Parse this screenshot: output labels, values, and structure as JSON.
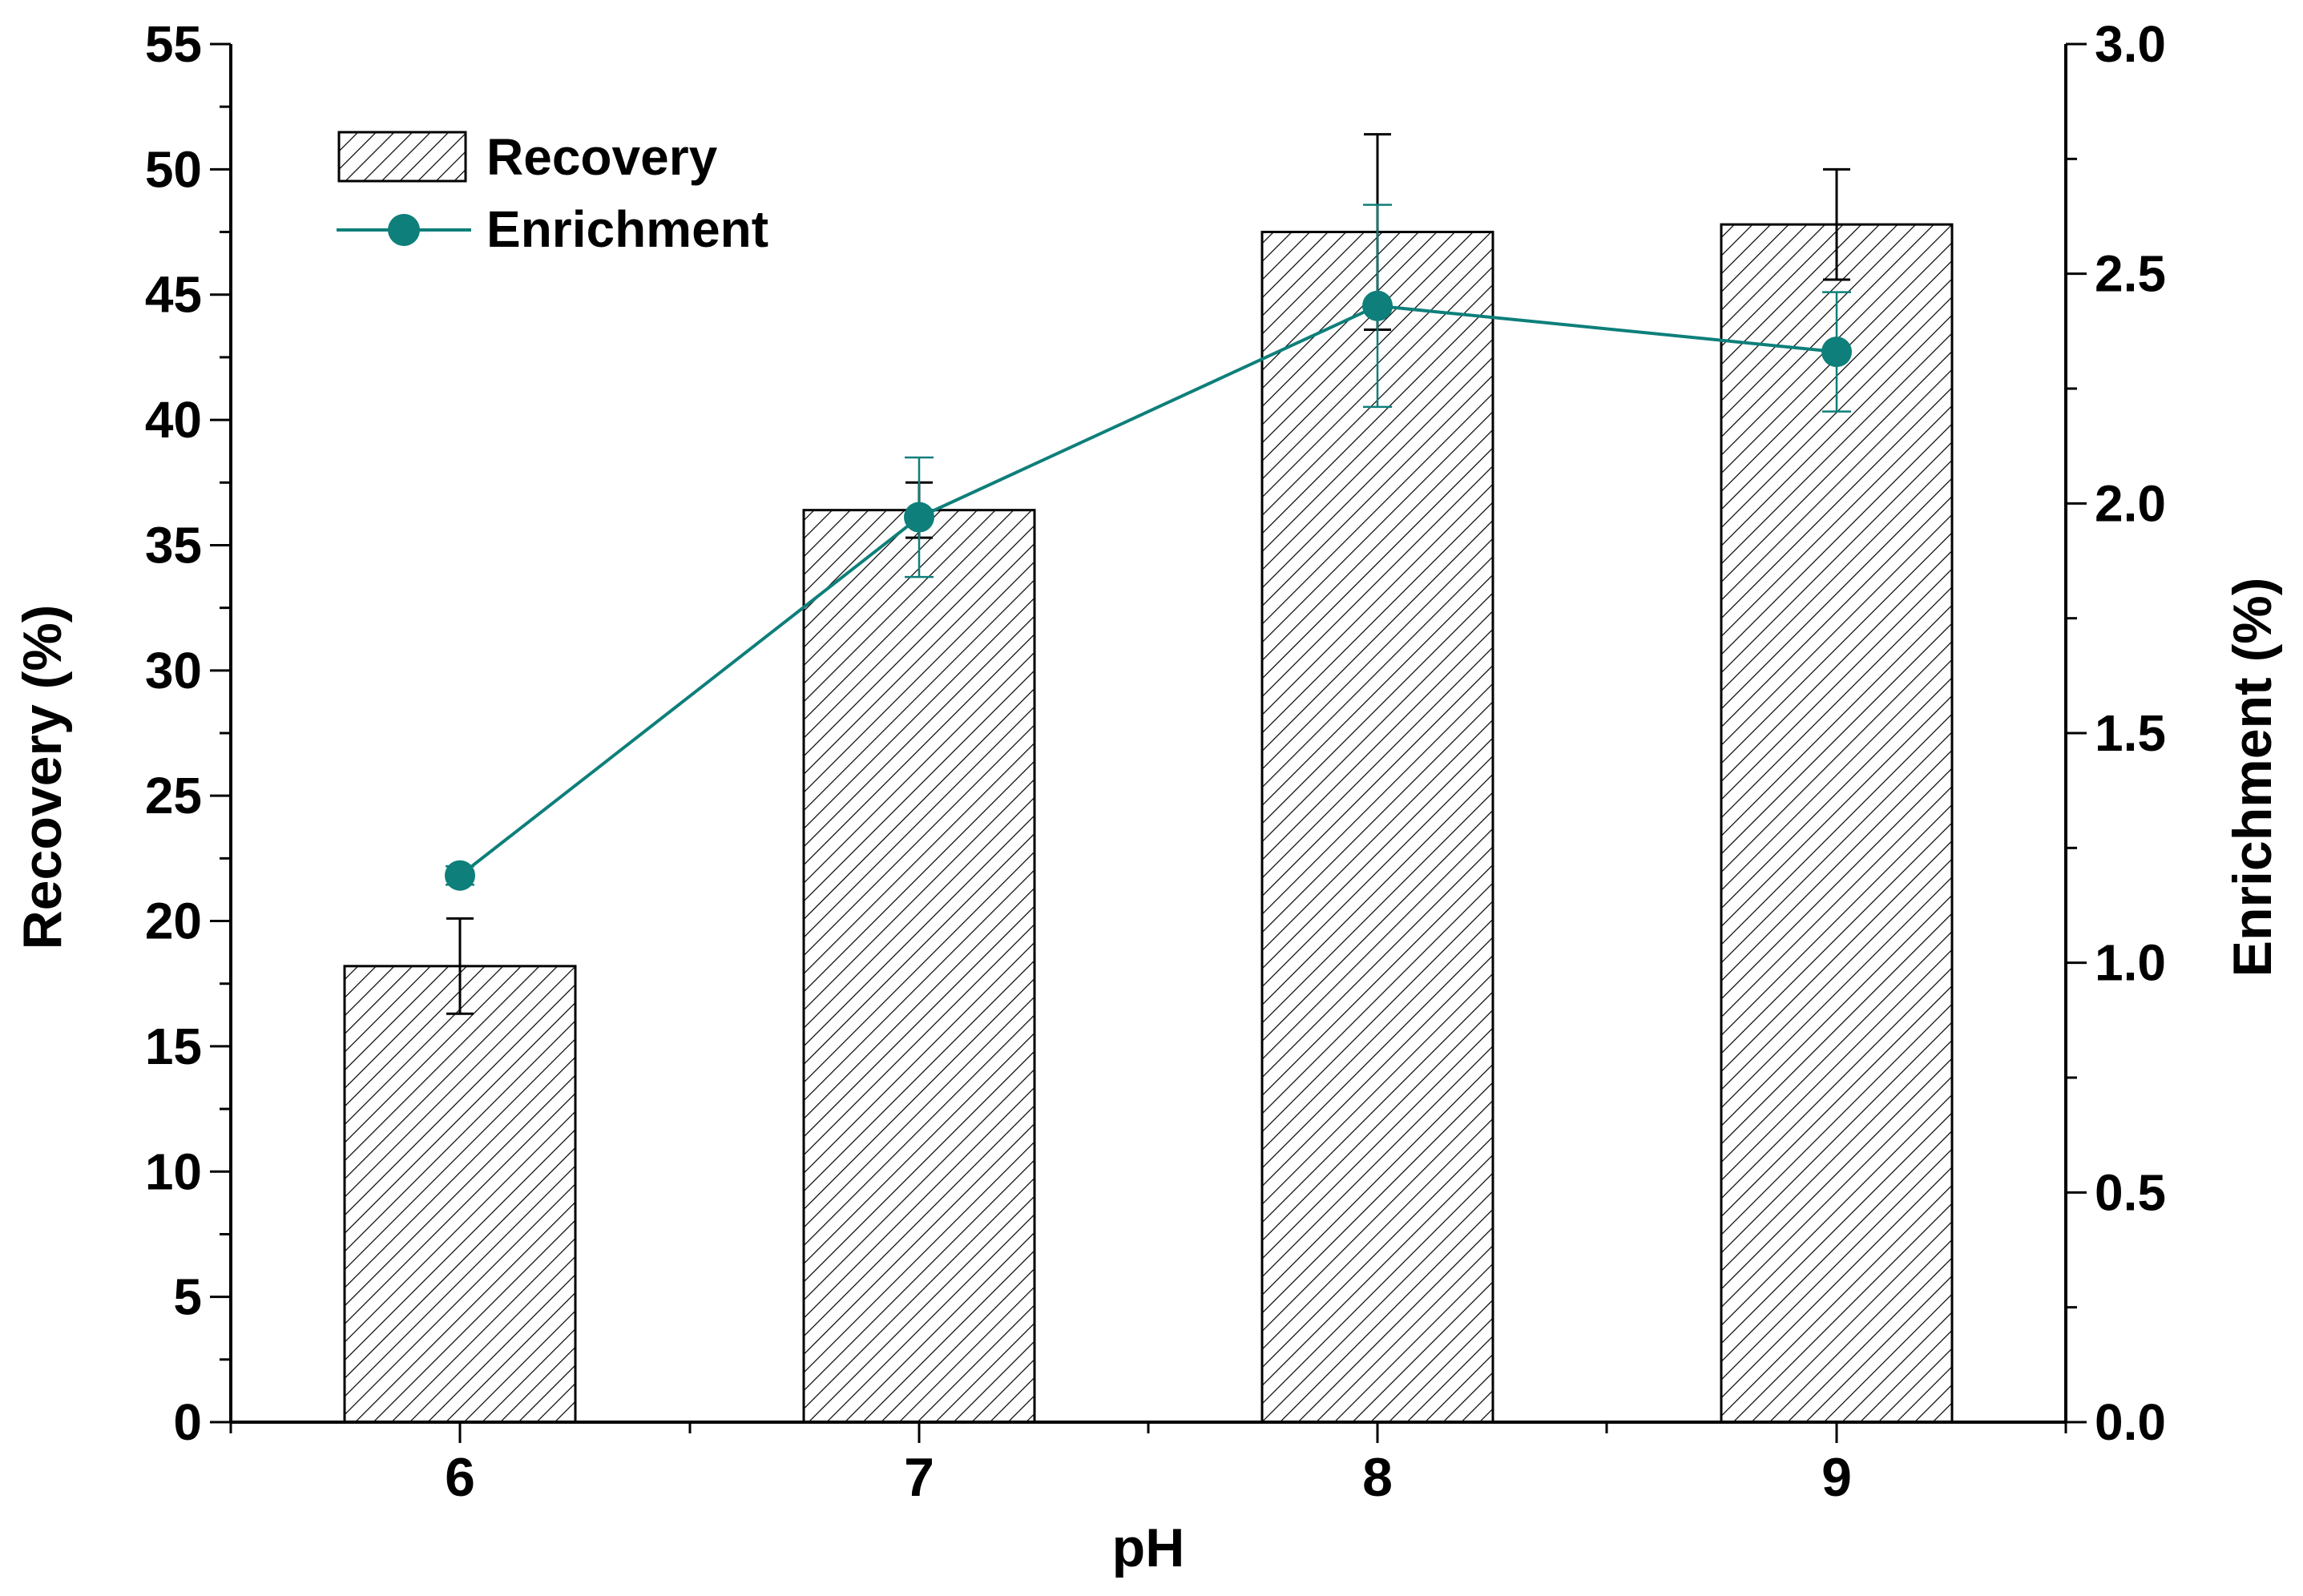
{
  "chart_data": {
    "type": "bar",
    "title": "",
    "xlabel": "pH",
    "ylabel": "Recovery (%)",
    "y2label": "Enrichment (%)",
    "categories": [
      "6",
      "7",
      "8",
      "9"
    ],
    "ylim": [
      0,
      55
    ],
    "y_ticks": [
      "0",
      "5",
      "10",
      "15",
      "20",
      "25",
      "30",
      "35",
      "40",
      "45",
      "50",
      "55"
    ],
    "y2lim": [
      0,
      3
    ],
    "y2_ticks": [
      "0.0",
      "0.5",
      "1.0",
      "1.5",
      "2.0",
      "2.5",
      "3.0"
    ],
    "series": [
      {
        "name": "Recovery",
        "type": "bar",
        "axis": "left",
        "values": [
          18.2,
          36.4,
          47.5,
          47.8
        ],
        "errors": [
          1.9,
          1.1,
          3.9,
          2.2
        ]
      },
      {
        "name": "Enrichment",
        "type": "line",
        "axis": "right",
        "values": [
          1.19,
          1.97,
          2.43,
          2.33
        ],
        "errors": [
          0.02,
          0.13,
          0.22,
          0.13
        ]
      }
    ],
    "legend": {
      "position": "top-left",
      "entries": [
        "Recovery",
        "Enrichment"
      ]
    },
    "colors": {
      "bar_fill": "#ffffff",
      "bar_hatch": "#000000",
      "line": "#0e7f7a",
      "marker": "#0e7f7a"
    }
  }
}
